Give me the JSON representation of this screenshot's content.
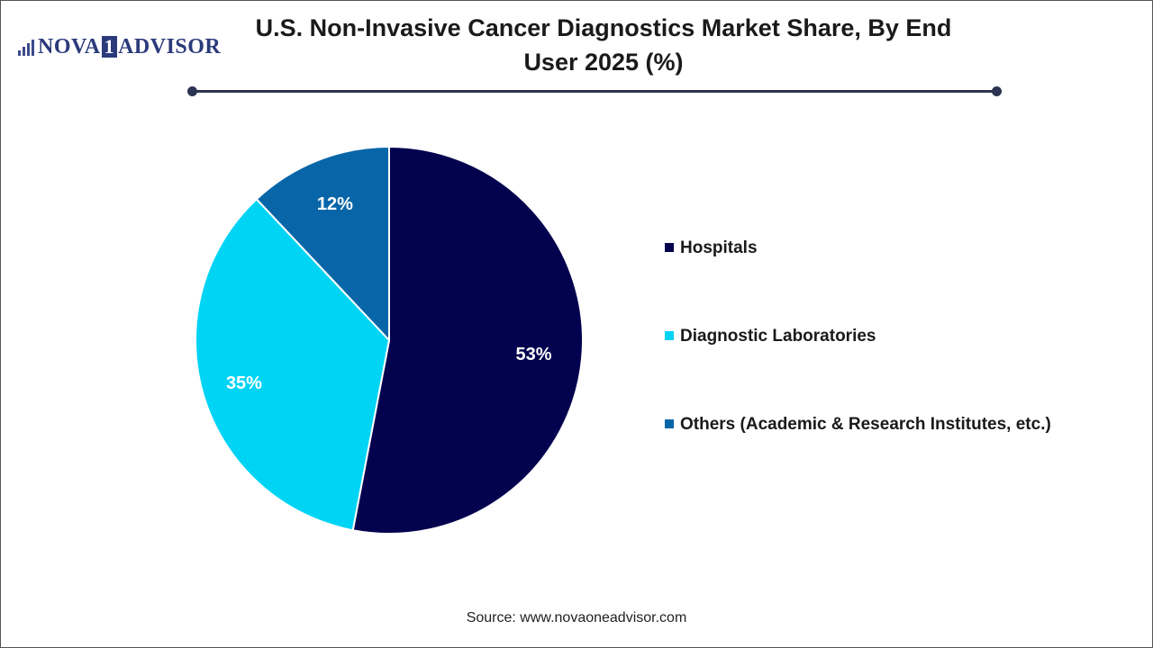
{
  "logo": {
    "part1": "NOVA",
    "part2": "1",
    "part3": "ADVISOR"
  },
  "title": "U.S. Non-Invasive Cancer Diagnostics Market Share, By End User 2025 (%)",
  "source": "Source: www.novaoneadvisor.com",
  "chart_data": {
    "type": "pie",
    "title": "U.S. Non-Invasive Cancer Diagnostics Market Share, By End User 2025 (%)",
    "categories": [
      "Hospitals",
      "Diagnostic Laboratories",
      "Others (Academic & Research Institutes, etc.)"
    ],
    "values": [
      53,
      35,
      12
    ],
    "labels": [
      "53%",
      "35%",
      "12%"
    ],
    "colors": [
      "#02024f",
      "#00d4f5",
      "#0866a8"
    ],
    "legend_position": "right"
  }
}
